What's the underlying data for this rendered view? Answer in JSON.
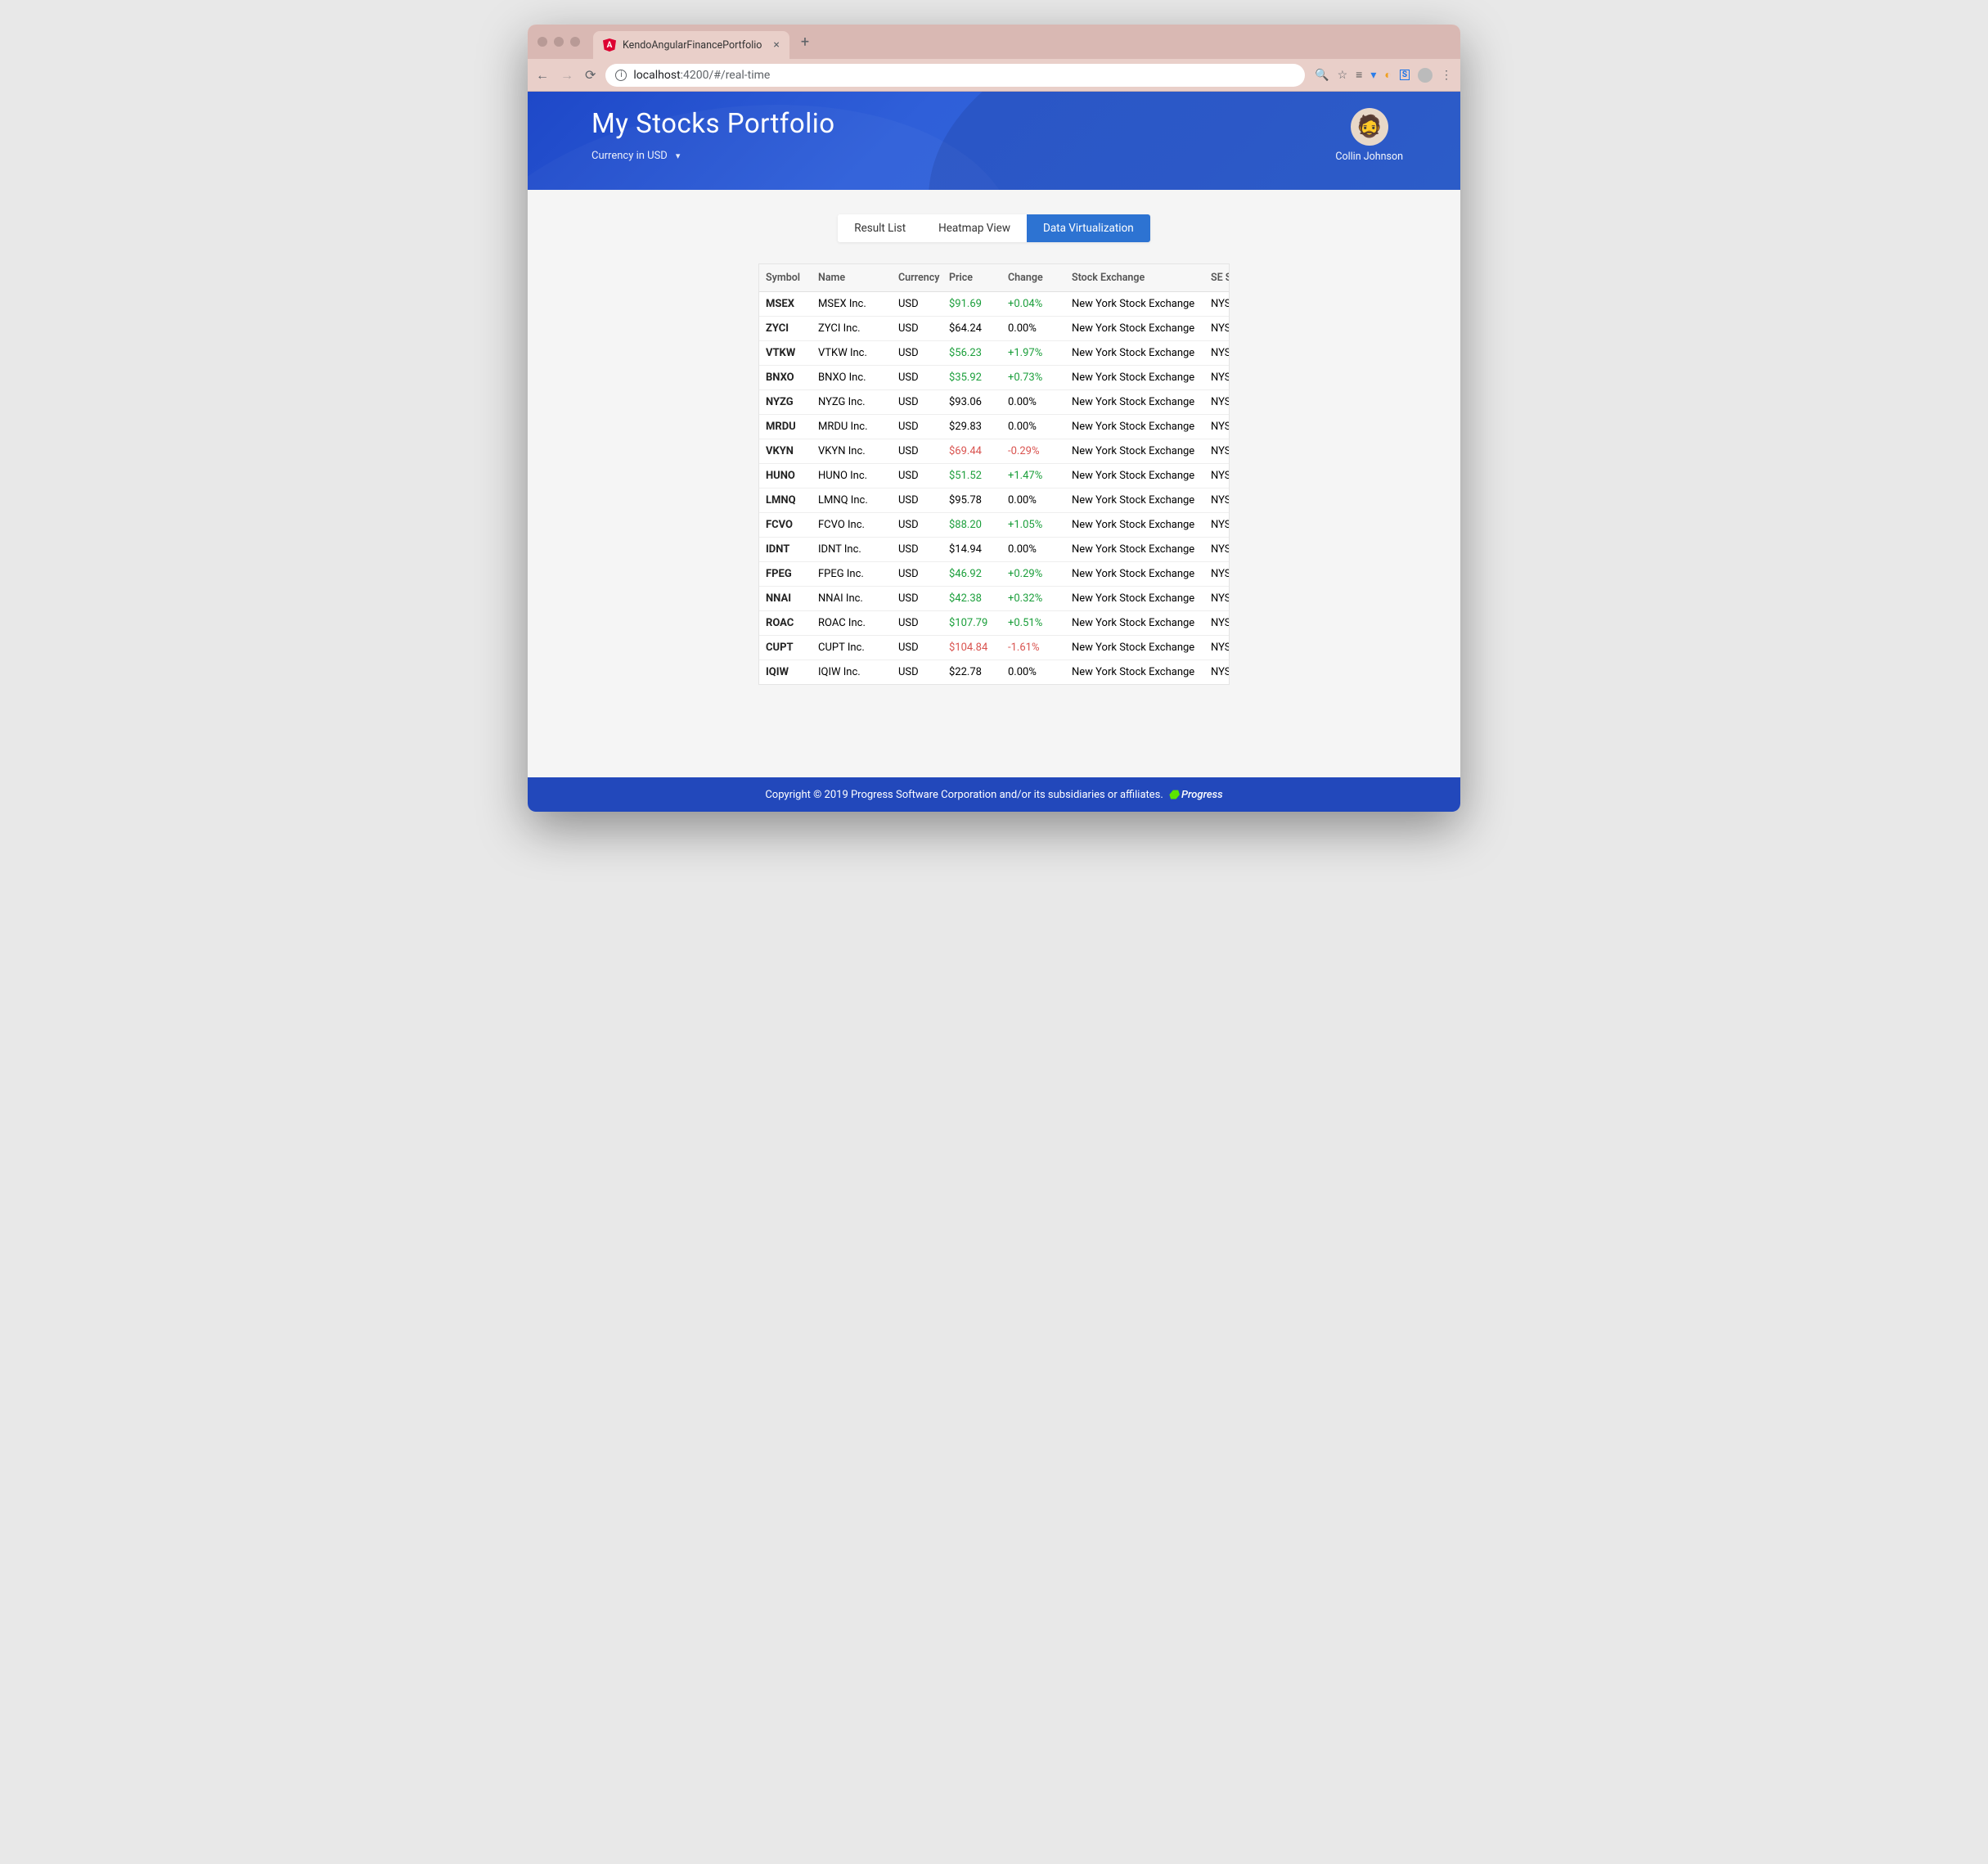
{
  "browser": {
    "tab_title": "KendoAngularFinancePortfolio",
    "url_host": "localhost",
    "url_port_path": ":4200/#/real-time"
  },
  "hero": {
    "title": "My Stocks Portfolio",
    "currency_label": "Currency in USD"
  },
  "user": {
    "name": "Collin Johnson"
  },
  "tabs": [
    {
      "label": "Result List",
      "active": false
    },
    {
      "label": "Heatmap View",
      "active": false
    },
    {
      "label": "Data Virtualization",
      "active": true
    }
  ],
  "grid": {
    "columns": [
      "Symbol",
      "Name",
      "Currency",
      "Price",
      "Change",
      "Stock Exchange",
      "SE Short"
    ],
    "col_classes": [
      "col-symbol",
      "col-name",
      "col-currency",
      "col-price",
      "col-change",
      "col-exchange",
      "col-seshort"
    ],
    "rows": [
      {
        "symbol": "MSEX",
        "name": "MSEX Inc.",
        "currency": "USD",
        "price": "$91.69",
        "change": "+0.04%",
        "dir": "pos",
        "exchange": "New York Stock Exchange",
        "se": "NYSE"
      },
      {
        "symbol": "ZYCI",
        "name": "ZYCI Inc.",
        "currency": "USD",
        "price": "$64.24",
        "change": "0.00%",
        "dir": "",
        "exchange": "New York Stock Exchange",
        "se": "NYSE"
      },
      {
        "symbol": "VTKW",
        "name": "VTKW Inc.",
        "currency": "USD",
        "price": "$56.23",
        "change": "+1.97%",
        "dir": "pos",
        "exchange": "New York Stock Exchange",
        "se": "NYSE"
      },
      {
        "symbol": "BNXO",
        "name": "BNXO Inc.",
        "currency": "USD",
        "price": "$35.92",
        "change": "+0.73%",
        "dir": "pos",
        "exchange": "New York Stock Exchange",
        "se": "NYSE"
      },
      {
        "symbol": "NYZG",
        "name": "NYZG Inc.",
        "currency": "USD",
        "price": "$93.06",
        "change": "0.00%",
        "dir": "",
        "exchange": "New York Stock Exchange",
        "se": "NYSE"
      },
      {
        "symbol": "MRDU",
        "name": "MRDU Inc.",
        "currency": "USD",
        "price": "$29.83",
        "change": "0.00%",
        "dir": "",
        "exchange": "New York Stock Exchange",
        "se": "NYSE"
      },
      {
        "symbol": "VKYN",
        "name": "VKYN Inc.",
        "currency": "USD",
        "price": "$69.44",
        "change": "-0.29%",
        "dir": "neg",
        "exchange": "New York Stock Exchange",
        "se": "NYSE"
      },
      {
        "symbol": "HUNO",
        "name": "HUNO Inc.",
        "currency": "USD",
        "price": "$51.52",
        "change": "+1.47%",
        "dir": "pos",
        "exchange": "New York Stock Exchange",
        "se": "NYSE"
      },
      {
        "symbol": "LMNQ",
        "name": "LMNQ Inc.",
        "currency": "USD",
        "price": "$95.78",
        "change": "0.00%",
        "dir": "",
        "exchange": "New York Stock Exchange",
        "se": "NYSE"
      },
      {
        "symbol": "FCVO",
        "name": "FCVO Inc.",
        "currency": "USD",
        "price": "$88.20",
        "change": "+1.05%",
        "dir": "pos",
        "exchange": "New York Stock Exchange",
        "se": "NYSE"
      },
      {
        "symbol": "IDNT",
        "name": "IDNT Inc.",
        "currency": "USD",
        "price": "$14.94",
        "change": "0.00%",
        "dir": "",
        "exchange": "New York Stock Exchange",
        "se": "NYSE"
      },
      {
        "symbol": "FPEG",
        "name": "FPEG Inc.",
        "currency": "USD",
        "price": "$46.92",
        "change": "+0.29%",
        "dir": "pos",
        "exchange": "New York Stock Exchange",
        "se": "NYSE"
      },
      {
        "symbol": "NNAI",
        "name": "NNAI Inc.",
        "currency": "USD",
        "price": "$42.38",
        "change": "+0.32%",
        "dir": "pos",
        "exchange": "New York Stock Exchange",
        "se": "NYSE"
      },
      {
        "symbol": "ROAC",
        "name": "ROAC Inc.",
        "currency": "USD",
        "price": "$107.79",
        "change": "+0.51%",
        "dir": "pos",
        "exchange": "New York Stock Exchange",
        "se": "NYSE"
      },
      {
        "symbol": "CUPT",
        "name": "CUPT Inc.",
        "currency": "USD",
        "price": "$104.84",
        "change": "-1.61%",
        "dir": "neg",
        "exchange": "New York Stock Exchange",
        "se": "NYSE"
      },
      {
        "symbol": "IQIW",
        "name": "IQIW Inc.",
        "currency": "USD",
        "price": "$22.78",
        "change": "0.00%",
        "dir": "",
        "exchange": "New York Stock Exchange",
        "se": "NYSE"
      }
    ]
  },
  "footer": {
    "copyright": "Copyright © 2019 Progress Software Corporation and/or its subsidiaries or affiliates.",
    "brand": "Progress"
  },
  "colors": {
    "hero_bg_from": "#1e48c8",
    "hero_bg_to": "#3267db",
    "tab_active": "#2d73d2",
    "positive": "#1a9e3a",
    "negative": "#d9534f",
    "footer_bg": "#2248bb"
  }
}
